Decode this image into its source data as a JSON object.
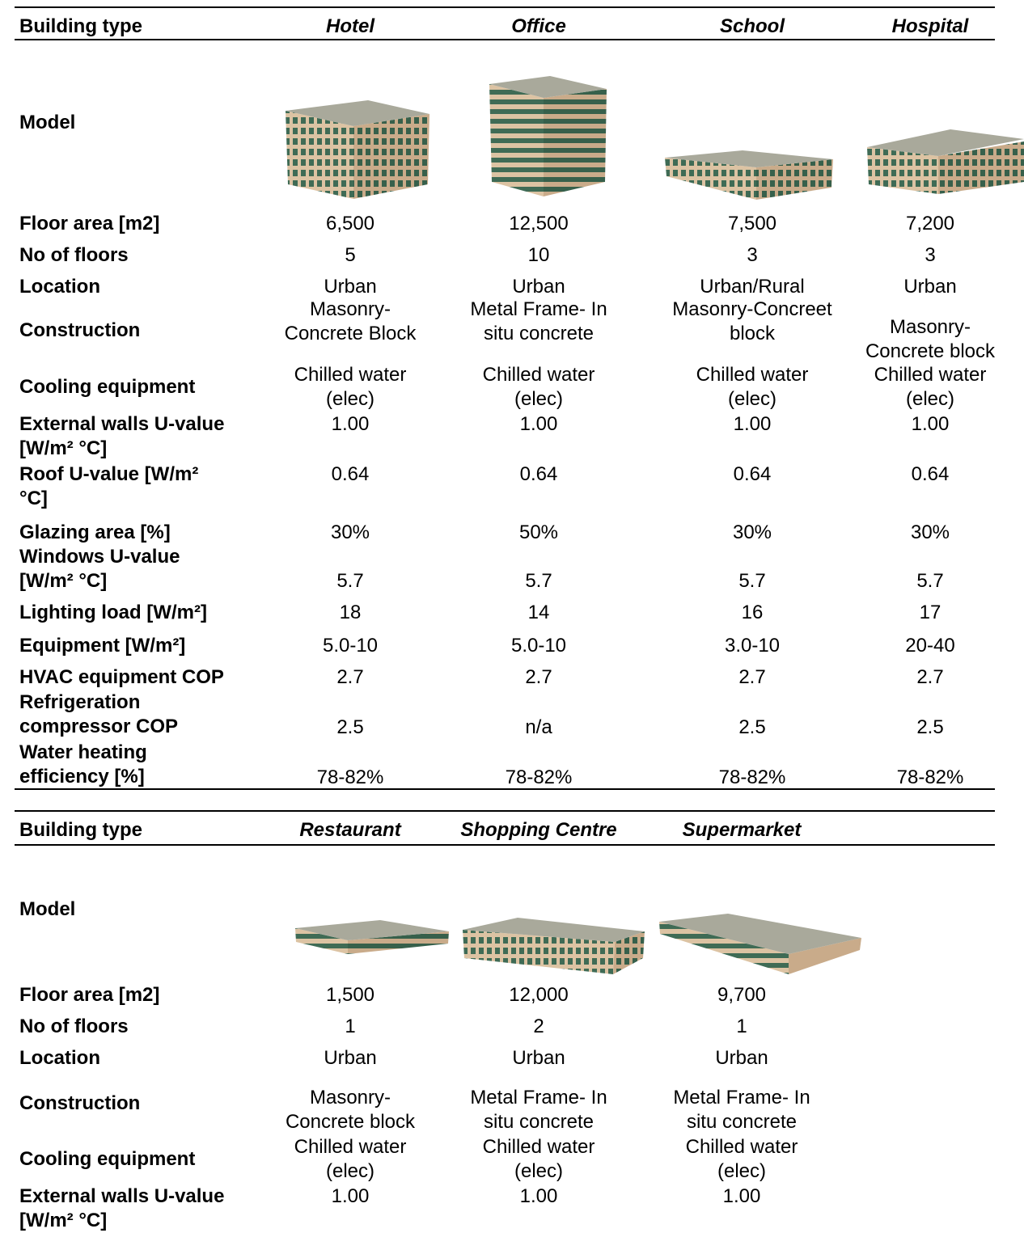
{
  "tables": [
    {
      "header": [
        "Building type",
        "Hotel",
        "Office",
        "School",
        "Hospital"
      ],
      "rows": [
        [
          "Model"
        ],
        [
          "Floor area [m2]",
          "6,500",
          "12,500",
          "7,500",
          "7,200"
        ],
        [
          "No of floors",
          "5",
          "10",
          "3",
          "3"
        ],
        [
          "Location",
          "Urban",
          "Urban",
          "Urban/Rural",
          "Urban"
        ],
        [
          "Construction",
          "Masonry-\nConcrete Block",
          "Metal Frame- In\nsitu concrete",
          "Masonry-Concreet\nblock",
          "Masonry-\nConcrete block"
        ],
        [
          "Cooling equipment",
          "Chilled water\n(elec)",
          "Chilled water\n(elec)",
          "Chilled water\n(elec)",
          "Chilled water\n(elec)"
        ],
        [
          "External walls U-value\n[W/m² °C]",
          "1.00",
          "1.00",
          "1.00",
          "1.00"
        ],
        [
          "Roof U-value [W/m²\n°C]",
          "0.64",
          "0.64",
          "0.64",
          "0.64"
        ],
        [
          "Glazing area [%]",
          "30%",
          "50%",
          "30%",
          "30%"
        ],
        [
          "Windows U-value\n[W/m² °C]",
          "5.7",
          "5.7",
          "5.7",
          "5.7"
        ],
        [
          "Lighting load [W/m²]",
          "18",
          "14",
          "16",
          "17"
        ],
        [
          "Equipment  [W/m²]",
          "5.0-10",
          "5.0-10",
          "3.0-10",
          "20-40"
        ],
        [
          "HVAC equipment COP",
          "2.7",
          "2.7",
          "2.7",
          "2.7"
        ],
        [
          "Refrigeration\ncompressor COP",
          "2.5",
          "n/a",
          "2.5",
          "2.5"
        ],
        [
          "Water heating\nefficiency [%]",
          "78-82%",
          "78-82%",
          "78-82%",
          "78-82%"
        ]
      ]
    },
    {
      "header": [
        "Building type",
        "Restaurant",
        "Shopping Centre",
        "Supermarket"
      ],
      "rows": [
        [
          "Model"
        ],
        [
          "Floor area [m2]",
          "1,500",
          "12,000",
          "9,700"
        ],
        [
          "No of floors",
          "1",
          "2",
          "1"
        ],
        [
          "Location",
          "Urban",
          "Urban",
          "Urban"
        ],
        [
          "Construction",
          "Masonry-\nConcrete block",
          "Metal Frame- In\nsitu concrete",
          "Metal Frame- In\nsitu concrete"
        ],
        [
          "Cooling equipment",
          "Chilled water\n(elec)",
          "Chilled water\n(elec)",
          "Chilled water\n(elec)"
        ],
        [
          "External walls U-value\n[W/m² °C]",
          "1.00",
          "1.00",
          "1.00"
        ]
      ]
    }
  ]
}
